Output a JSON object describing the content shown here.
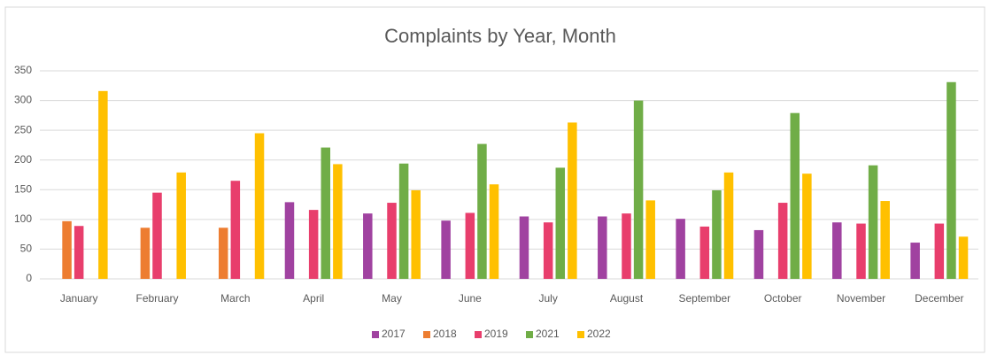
{
  "chart_data": {
    "type": "bar",
    "title": "Complaints by Year, Month",
    "categories": [
      "January",
      "February",
      "March",
      "April",
      "May",
      "June",
      "July",
      "August",
      "September",
      "October",
      "November",
      "December"
    ],
    "series": [
      {
        "name": "2017",
        "color": "#a042a0",
        "values": [
          null,
          null,
          null,
          129,
          110,
          98,
          105,
          105,
          101,
          82,
          95,
          61
        ]
      },
      {
        "name": "2018",
        "color": "#ed7d31",
        "values": [
          97,
          86,
          86,
          null,
          null,
          null,
          null,
          null,
          null,
          null,
          null,
          null
        ]
      },
      {
        "name": "2019",
        "color": "#e83e6c",
        "values": [
          89,
          145,
          165,
          116,
          128,
          111,
          95,
          110,
          88,
          128,
          93,
          93
        ]
      },
      {
        "name": "2021",
        "color": "#70ad47",
        "values": [
          null,
          null,
          null,
          221,
          194,
          227,
          187,
          300,
          149,
          279,
          191,
          331
        ]
      },
      {
        "name": "2022",
        "color": "#ffc000",
        "values": [
          316,
          179,
          245,
          193,
          149,
          159,
          263,
          132,
          179,
          177,
          131,
          71
        ]
      }
    ],
    "ylim": [
      0,
      350
    ],
    "yticks": [
      0,
      50,
      100,
      150,
      200,
      250,
      300,
      350
    ],
    "grid": true,
    "legend": "bottom"
  }
}
